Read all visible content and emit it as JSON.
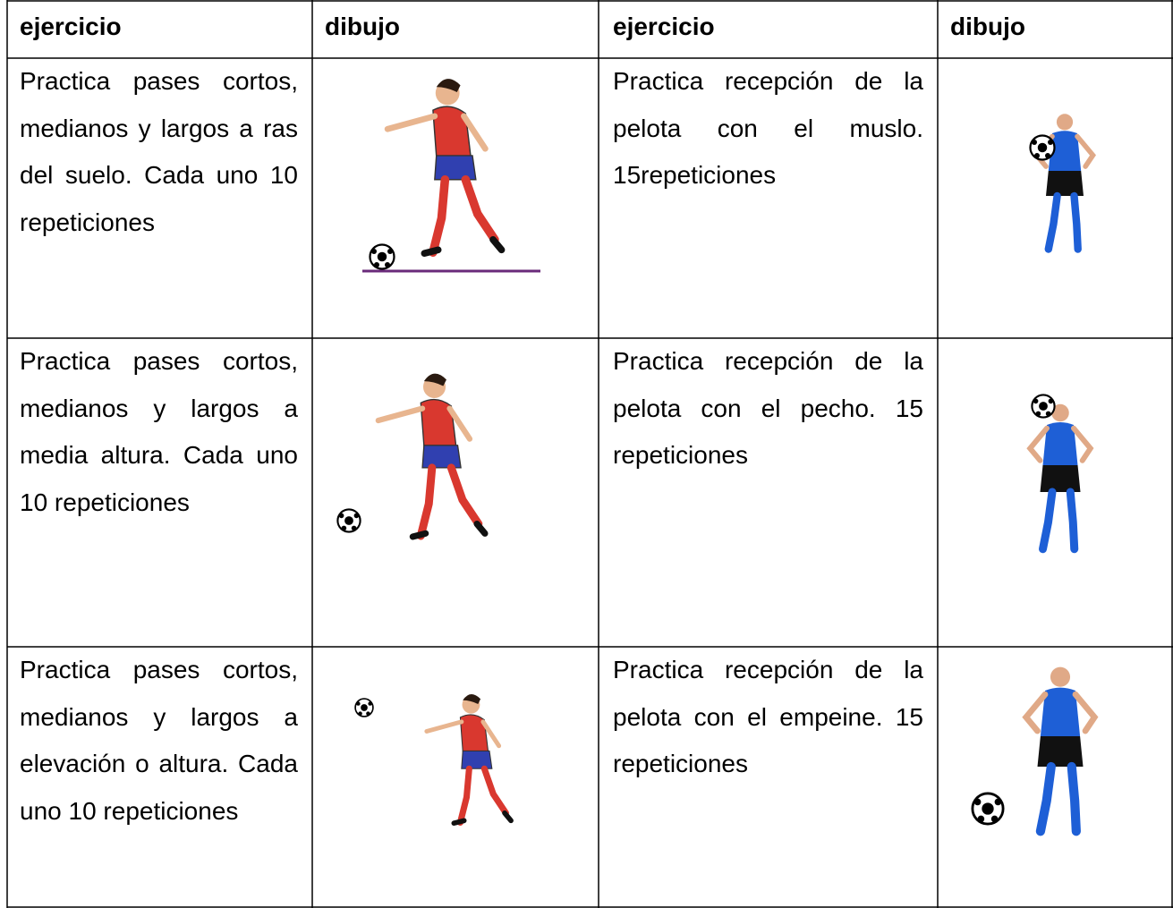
{
  "table": {
    "header": [
      "ejercicio",
      "dibujo",
      "ejercicio",
      "dibujo"
    ],
    "rows": [
      [
        "Practica pases cortos, medianos y largos a ras del suelo. Cada uno 10 repeticiones",
        "Practica recepción de la pelota con el muslo. 15repeticiones"
      ],
      [
        "Practica pases cortos, medianos y largos a media altura. Cada uno 10 repeticiones",
        "Practica recepción de la pelota con el pecho. 15 repeticiones"
      ],
      [
        "Practica pases cortos, medianos y largos a elevación o altura. Cada uno 10 repeticiones",
        "Practica recepción de la pelota con el empeine. 15 repeticiones"
      ]
    ]
  }
}
